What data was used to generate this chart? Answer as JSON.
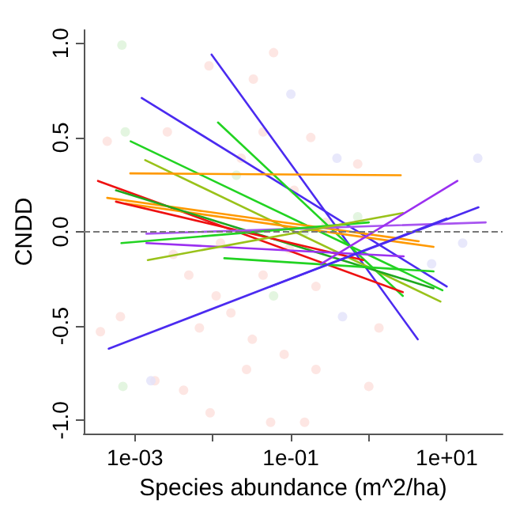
{
  "chart_data": {
    "type": "line",
    "xlabel": "Species abundance (m^2/ha)",
    "ylabel": "CNDD",
    "log": "x",
    "grid": false,
    "marker": "none",
    "line_style": "solid",
    "xlim": [
      0.00022,
      52
    ],
    "ylim": [
      -1.07,
      1.07
    ],
    "xticks": [
      {
        "value": 0.001,
        "label": "1e-03"
      },
      {
        "value": 0.01,
        "label": null
      },
      {
        "value": 0.1,
        "label": "1e-01"
      },
      {
        "value": 1,
        "label": null
      },
      {
        "value": 10,
        "label": "1e+01"
      }
    ],
    "yticks": [
      {
        "value": -1,
        "label": "-1.0"
      },
      {
        "value": -0.5,
        "label": "-0.5"
      },
      {
        "value": 0,
        "label": "0.0"
      },
      {
        "value": 0.5,
        "label": "0.5"
      },
      {
        "value": 1,
        "label": "1.0"
      }
    ],
    "ref_lines": [
      {
        "axis": "y",
        "value": 0,
        "label": null,
        "color": "#777777",
        "line_style": "dashed"
      }
    ],
    "series": [
      {
        "type": "scatter",
        "marker": "circle",
        "color": "#fde0dc",
        "x": [
          0.00044,
          0.00036,
          0.0018,
          0.0089,
          0.033,
          0.06,
          0.0092,
          0.055,
          0.017,
          0.032,
          0.21,
          1.0,
          0.011,
          0.0049,
          0.0031,
          0.00065,
          0.0012,
          0.0026,
          0.023,
          0.044,
          0.18,
          0.72,
          0.28,
          0.11,
          0.21,
          0.095,
          0.044,
          0.0125,
          0.0067,
          0.082,
          0.027,
          1.35,
          0.15,
          0.0042
        ],
        "values": [
          0.48,
          -0.53,
          -0.79,
          0.88,
          0.81,
          0.95,
          -0.96,
          -1.01,
          -0.43,
          -0.57,
          -0.73,
          -0.82,
          -0.34,
          -0.23,
          -0.12,
          -0.45,
          null,
          0.53,
          0.39,
          0.53,
          0.5,
          0.36,
          0.05,
          0.22,
          -0.29,
          -0.09,
          -0.23,
          -0.06,
          -0.51,
          -0.65,
          -0.73,
          -0.51,
          -1.01,
          -0.84
        ]
      },
      {
        "type": "scatter",
        "marker": "circle",
        "color": "#dcf2d8",
        "x": [
          0.00068,
          0.72,
          0.0007,
          0.06,
          0.15,
          0.02,
          0.00075
        ],
        "values": [
          0.99,
          0.08,
          -0.82,
          -0.34,
          0.0,
          0.3,
          0.53
        ]
      },
      {
        "type": "scatter",
        "marker": "circle",
        "color": "#e2e2fa",
        "x": [
          0.1,
          0.46,
          0.39,
          16,
          25,
          6.4,
          0.0016
        ],
        "values": [
          0.73,
          -0.45,
          0.39,
          -0.06,
          0.39,
          -0.17,
          -0.79
        ]
      },
      {
        "color": "#4b2bf0",
        "x": [
          0.0096,
          4.24
        ],
        "values": [
          0.94,
          -0.57
        ]
      },
      {
        "color": "#4b2bf0",
        "x": [
          0.00122,
          10
        ],
        "values": [
          0.71,
          -0.29
        ]
      },
      {
        "color": "#22d322",
        "x": [
          0.0116,
          2.73
        ],
        "values": [
          0.58,
          -0.34
        ]
      },
      {
        "color": "#22d322",
        "x": [
          0.00088,
          8.8
        ],
        "values": [
          0.48,
          -0.31
        ]
      },
      {
        "color": "#99c21a",
        "x": [
          0.00135,
          8.3
        ],
        "values": [
          0.38,
          -0.37
        ]
      },
      {
        "color": "#ff9900",
        "x": [
          0.00087,
          2.57
        ],
        "values": [
          0.31,
          0.3
        ]
      },
      {
        "color": "#ee1111",
        "x": [
          0.000335,
          2.73
        ],
        "values": [
          0.27,
          -0.32
        ]
      },
      {
        "color": "#ff9900",
        "x": [
          0.00044,
          4.37
        ],
        "values": [
          0.18,
          -0.05
        ]
      },
      {
        "color": "#ff9900",
        "x": [
          0.00076,
          6.76
        ],
        "values": [
          0.15,
          -0.08
        ]
      },
      {
        "color": "#1fa81f",
        "x": [
          0.00057,
          6.76
        ],
        "values": [
          0.22,
          -0.3
        ]
      },
      {
        "color": "#ee1111",
        "x": [
          0.00057,
          0.85
        ],
        "values": [
          0.16,
          -0.15
        ]
      },
      {
        "color": "#a855f0",
        "x": [
          0.0014,
          31.6
        ],
        "values": [
          -0.01,
          0.05
        ]
      },
      {
        "color": "#9b30f0",
        "x": [
          0.0014,
          2.8
        ],
        "values": [
          -0.06,
          -0.13
        ]
      },
      {
        "color": "#22d322",
        "x": [
          0.00067,
          1.0
        ],
        "values": [
          -0.06,
          0.05
        ]
      },
      {
        "color": "#99c21a",
        "x": [
          0.00146,
          2.73
        ],
        "values": [
          -0.15,
          0.1
        ]
      },
      {
        "color": "#22d322",
        "x": [
          0.014,
          6.76
        ],
        "values": [
          -0.14,
          -0.21
        ]
      },
      {
        "color": "#4b2bf0",
        "x": [
          0.00046,
          10
        ],
        "values": [
          -0.62,
          0.07
        ]
      },
      {
        "color": "#4b2bf0",
        "x": [
          0.055,
          25.5
        ],
        "values": [
          -0.29,
          0.13
        ]
      },
      {
        "color": "#9b30f0",
        "x": [
          0.243,
          13.7
        ],
        "values": [
          -0.17,
          0.27
        ]
      }
    ]
  }
}
